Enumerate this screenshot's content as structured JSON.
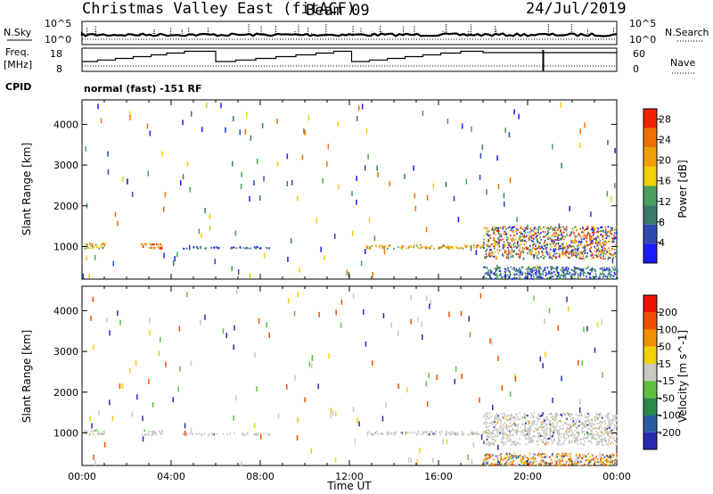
{
  "header": {
    "title": "Christmas Valley East (fitACF)",
    "beam": "Beam 09",
    "date": "24/Jul/2019"
  },
  "top_panels": {
    "nsky_label": "N.Sky",
    "nsearch_label": "N.Search",
    "freq_label_top": "Freq.",
    "freq_label_unit": "[MHz]",
    "nave_label": "Nave",
    "cpid_label": "CPID",
    "mode_text": "normal (fast) -151 RF",
    "noise_ticks": [
      "10^5",
      "10^0"
    ],
    "noise_right_ticks": [
      "10^5",
      "10^0"
    ],
    "freq_ticks": [
      18,
      8
    ],
    "nave_ticks": [
      60,
      0
    ]
  },
  "colors": {
    "frame": "#000000",
    "echo_gray": "#c8c8c0"
  },
  "chart_data": [
    {
      "type": "line",
      "title": "N.Sky / N.Search",
      "x": [
        "00:00",
        "04:00",
        "08:00",
        "12:00",
        "16:00",
        "20:00",
        "24:00"
      ],
      "y_scale": "log",
      "ylim": [
        1,
        100000
      ],
      "series": [
        {
          "name": "N.Sky",
          "style": "solid",
          "approx_level": 100
        },
        {
          "name": "N.Search",
          "style": "dotted",
          "approx_level": 30
        }
      ]
    },
    {
      "type": "line",
      "title": "Freq. / Nave",
      "xlim_hours": [
        0,
        24
      ],
      "freq_ylim": [
        8,
        18
      ],
      "nave_ylim": [
        0,
        60
      ],
      "series": [
        {
          "name": "Freq.",
          "style": "solid-step",
          "steps": [
            {
              "t0": 0.0,
              "t1": 0.7,
              "f": 12
            },
            {
              "t0": 0.7,
              "t1": 1.5,
              "f": 12.7
            },
            {
              "t0": 1.5,
              "t1": 2.3,
              "f": 13.4
            },
            {
              "t0": 2.3,
              "t1": 3.1,
              "f": 14.2
            },
            {
              "t0": 3.1,
              "t1": 3.8,
              "f": 15
            },
            {
              "t0": 3.8,
              "t1": 4.6,
              "f": 15.8
            },
            {
              "t0": 4.6,
              "t1": 6.0,
              "f": 16.6
            },
            {
              "t0": 6.0,
              "t1": 6.9,
              "f": 12
            },
            {
              "t0": 6.9,
              "t1": 7.8,
              "f": 12.7
            },
            {
              "t0": 7.8,
              "t1": 8.7,
              "f": 13.4
            },
            {
              "t0": 8.7,
              "t1": 9.6,
              "f": 14.2
            },
            {
              "t0": 9.6,
              "t1": 10.5,
              "f": 15
            },
            {
              "t0": 10.5,
              "t1": 11.3,
              "f": 15.8
            },
            {
              "t0": 11.3,
              "t1": 12.1,
              "f": 16.6
            },
            {
              "t0": 12.1,
              "t1": 12.9,
              "f": 12
            },
            {
              "t0": 12.9,
              "t1": 13.7,
              "f": 12.7
            },
            {
              "t0": 13.7,
              "t1": 14.5,
              "f": 13.4
            },
            {
              "t0": 14.5,
              "t1": 15.3,
              "f": 14.2
            },
            {
              "t0": 15.3,
              "t1": 16.1,
              "f": 15
            },
            {
              "t0": 16.1,
              "t1": 17.0,
              "f": 15.8
            },
            {
              "t0": 17.0,
              "t1": 18.0,
              "f": 16.6
            },
            {
              "t0": 18.0,
              "t1": 24.0,
              "f": 16
            }
          ]
        },
        {
          "name": "Nave",
          "style": "dotted",
          "approx_level": 20
        }
      ]
    },
    {
      "type": "heatmap",
      "title": "Power",
      "xlabel": "",
      "ylabel": "Slant Range [km]",
      "ylim": [
        200,
        4600
      ],
      "xlim_hours": [
        0,
        24
      ],
      "y_ticks": [
        1000,
        2000,
        3000,
        4000
      ],
      "colorbar": {
        "label": "Power [dB]",
        "ticks": [
          4,
          8,
          12,
          16,
          20,
          24,
          28
        ],
        "range": [
          0,
          30
        ],
        "colors": [
          "#1a1aff",
          "#2e4ab0",
          "#3a7a6a",
          "#4aa060",
          "#f0d000",
          "#f0a000",
          "#f07000",
          "#f02000"
        ]
      },
      "echo_regions": [
        {
          "t0": 0.0,
          "t1": 1.0,
          "r0": 950,
          "r1": 1080,
          "level": "medium-high"
        },
        {
          "t0": 2.6,
          "t1": 3.6,
          "r0": 950,
          "r1": 1080,
          "level": "high"
        },
        {
          "t0": 4.5,
          "t1": 8.5,
          "r0": 950,
          "r1": 1000,
          "level": "low"
        },
        {
          "t0": 12.7,
          "t1": 18.0,
          "r0": 950,
          "r1": 1040,
          "level": "medium-high"
        },
        {
          "t0": 18.0,
          "t1": 24.0,
          "r0": 700,
          "r1": 1500,
          "level": "mixed"
        },
        {
          "t0": 18.0,
          "t1": 24.0,
          "r0": 200,
          "r1": 500,
          "level": "low"
        }
      ]
    },
    {
      "type": "heatmap",
      "title": "Velocity",
      "xlabel": "Time UT",
      "ylabel": "Slant Range [km]",
      "ylim": [
        200,
        4600
      ],
      "xlim_hours": [
        0,
        24
      ],
      "x_ticks": [
        "00:00",
        "04:00",
        "08:00",
        "12:00",
        "16:00",
        "20:00",
        "00:00"
      ],
      "y_ticks": [
        1000,
        2000,
        3000,
        4000
      ],
      "colorbar": {
        "label": "Velocity [m s^-1]",
        "ticks": [
          200,
          100,
          50,
          15,
          -15,
          -50,
          -100,
          -200
        ],
        "colors": [
          "#2a2ab0",
          "#2a5aa0",
          "#2a8a4a",
          "#60c040",
          "#c8c8c0",
          "#f0d000",
          "#f09000",
          "#f05000",
          "#f01000"
        ]
      },
      "echo_regions": [
        {
          "t0": 0.0,
          "t1": 1.0,
          "r0": 950,
          "r1": 1080,
          "level": "ground-scatter"
        },
        {
          "t0": 2.6,
          "t1": 3.6,
          "r0": 950,
          "r1": 1080,
          "level": "ground-scatter"
        },
        {
          "t0": 4.5,
          "t1": 8.5,
          "r0": 950,
          "r1": 1000,
          "level": "ground-scatter"
        },
        {
          "t0": 12.7,
          "t1": 18.0,
          "r0": 950,
          "r1": 1040,
          "level": "ground-scatter"
        },
        {
          "t0": 18.0,
          "t1": 24.0,
          "r0": 700,
          "r1": 1500,
          "level": "ground-scatter"
        },
        {
          "t0": 18.0,
          "t1": 24.0,
          "r0": 200,
          "r1": 500,
          "level": "mixed-ionospheric"
        }
      ]
    }
  ]
}
